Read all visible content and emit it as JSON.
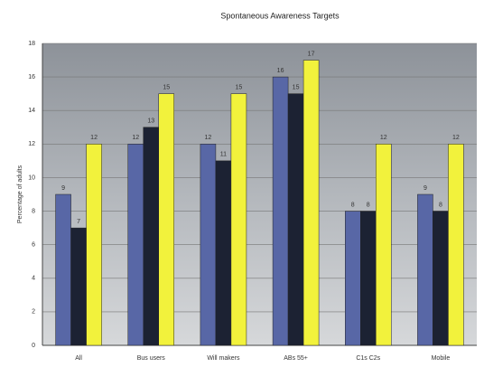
{
  "chart_data": {
    "type": "bar",
    "title": "Spontaneous Awareness Targets",
    "y_label": "Percentage of adults",
    "categories": [
      "All",
      "Bus users",
      "Will makers",
      "ABs 55+",
      "C1s C2s",
      "Mobile"
    ],
    "series": [
      {
        "color": "#5867a6",
        "values": [
          9,
          12,
          12,
          16,
          8,
          9
        ]
      },
      {
        "color": "#1c2233",
        "values": [
          7,
          13,
          11,
          15,
          8,
          8
        ]
      },
      {
        "color": "#f2f23c",
        "values": [
          12,
          15,
          15,
          17,
          12,
          12
        ]
      }
    ],
    "ylim": [
      0,
      18
    ],
    "yticks": [
      0,
      2,
      4,
      6,
      8,
      10,
      12,
      14,
      16,
      18
    ],
    "grid": true
  }
}
